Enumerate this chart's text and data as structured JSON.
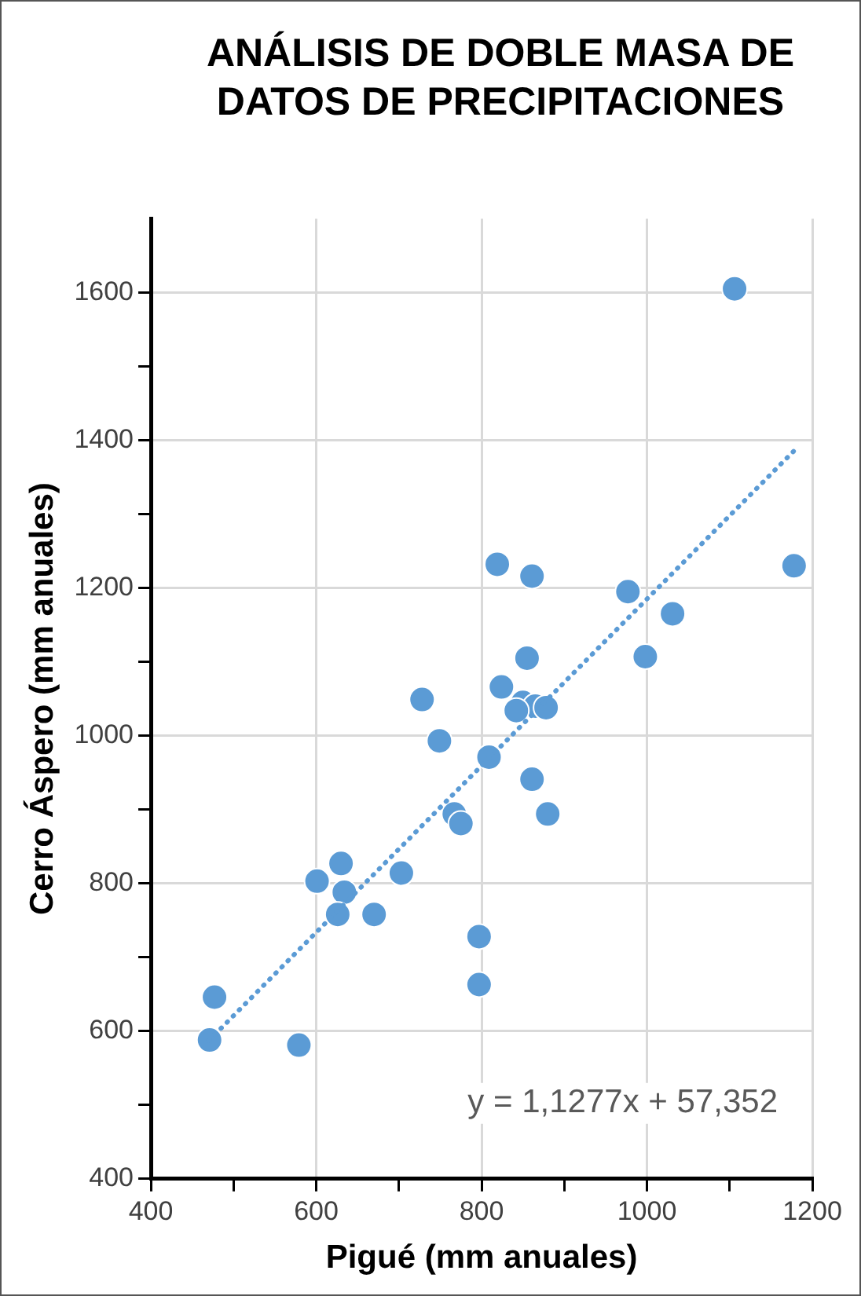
{
  "chart_data": {
    "type": "scatter",
    "title": "ANÁLISIS DE DOBLE MASA DE DATOS DE PRECIPITACIONES",
    "xlabel": "Pigué (mm anuales)",
    "ylabel": "Cerro Áspero (mm anuales)",
    "series": [
      {
        "type": "scatter",
        "color": "#5b9bd5",
        "marker": "circle",
        "x": [
          1106,
          1178,
          819,
          861,
          977,
          1031,
          998,
          855,
          824,
          728,
          850,
          865,
          878,
          842,
          749,
          809,
          861,
          880,
          767,
          775,
          703,
          630,
          601,
          634,
          626,
          670,
          797,
          797,
          477,
          471,
          579
        ],
        "values": [
          1605,
          1230,
          1232,
          1216,
          1195,
          1165,
          1107,
          1105,
          1066,
          1049,
          1045,
          1040,
          1038,
          1034,
          993,
          971,
          941,
          894,
          894,
          881,
          814,
          827,
          803,
          788,
          758,
          758,
          728,
          663,
          646,
          588,
          581
        ]
      },
      {
        "type": "line",
        "color": "#5b9bd5",
        "line_style": "dotted",
        "marker": "none",
        "x": [
          470,
          1180
        ],
        "values": [
          587,
          1388
        ]
      }
    ],
    "xlim": [
      400,
      1200
    ],
    "ylim": [
      400,
      1700
    ],
    "xticks": [
      400,
      {
        "value": 500,
        "label": null
      },
      600,
      {
        "value": 700,
        "label": null
      },
      800,
      {
        "value": 900,
        "label": null
      },
      1000,
      {
        "value": 1100,
        "label": null
      },
      1200
    ],
    "yticks": [
      400,
      {
        "value": 500,
        "label": null
      },
      600,
      {
        "value": 700,
        "label": null
      },
      800,
      {
        "value": 900,
        "label": null
      },
      1000,
      {
        "value": 1100,
        "label": null
      },
      1200,
      {
        "value": 1300,
        "label": null
      },
      1400,
      {
        "value": 1500,
        "label": null
      },
      1600
    ],
    "grid": true,
    "legend": false,
    "annotations": [
      "y = 1,1277x + 57,352"
    ]
  }
}
